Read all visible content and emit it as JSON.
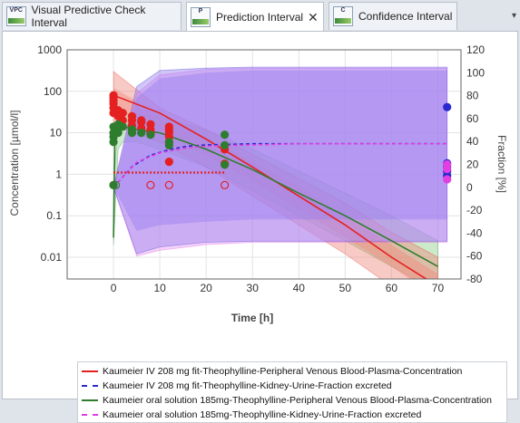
{
  "tabs": [
    {
      "icon_text": "VPC",
      "label": "Visual Predictive Check Interval"
    },
    {
      "icon_text": "P",
      "label": "Prediction Interval"
    },
    {
      "icon_text": "C",
      "label": "Confidence Interval"
    }
  ],
  "close_glyph": "✕",
  "dropdown_glyph": "▾",
  "chart_data": {
    "type": "line",
    "xlabel": "Time [h]",
    "ylabel": "Concentration [µmol/l]",
    "y2label": "Fraction [%]",
    "yscale": "log",
    "xlim": [
      -10,
      75
    ],
    "ylim": [
      0.003,
      1000
    ],
    "y2lim": [
      -80,
      120
    ],
    "x_ticks": [
      0,
      10,
      20,
      30,
      40,
      50,
      60,
      70
    ],
    "y_ticks": [
      0.01,
      0.1,
      1,
      10,
      100,
      1000
    ],
    "y_tick_labels": [
      "0.01",
      "0.1",
      "1",
      "10",
      "100",
      "1000"
    ],
    "y2_ticks": [
      -80,
      -60,
      -40,
      -20,
      0,
      20,
      40,
      60,
      80,
      100,
      120
    ],
    "grid": true,
    "legend_position": "bottom",
    "colors": {
      "red": "#e52020",
      "blue": "#2a2ad0",
      "green": "#2e7d2e",
      "magenta": "#e23fe2",
      "purple_band": "#a47cf0"
    },
    "series": [
      {
        "name": "Kaumeier IV 208 mg fit-Theophylline-Peripheral Venous Blood-Plasma-Concentration",
        "color": "#e52020",
        "style": "solid",
        "axis": "left",
        "x": [
          0,
          10,
          20,
          30,
          40,
          50,
          60,
          70
        ],
        "y": [
          80,
          30,
          7,
          1.5,
          0.3,
          0.06,
          0.01,
          0.002
        ],
        "band_outer": {
          "x": [
            0,
            10,
            20,
            30,
            40,
            50,
            60,
            70
          ],
          "upper": [
            300,
            40,
            12,
            3,
            0.8,
            0.2,
            0.04,
            0.01
          ],
          "lower": [
            15,
            6,
            1.5,
            0.3,
            0.06,
            0.012,
            0.002,
            0.0005
          ]
        },
        "band_inner": {
          "x": [
            0,
            10,
            20,
            30,
            40,
            50,
            60,
            70
          ],
          "upper": [
            120,
            28,
            8,
            2,
            0.5,
            0.1,
            0.02,
            0.004
          ],
          "lower": [
            40,
            12,
            3,
            0.7,
            0.14,
            0.03,
            0.006,
            0.001
          ]
        }
      },
      {
        "name": "Kaumeier IV 208 mg fit-Theophylline-Kidney-Urine-Fraction excreted",
        "color": "#2a2ad0",
        "style": "dashed",
        "axis": "right",
        "x": [
          0,
          4,
          8,
          12,
          16,
          20,
          30,
          40,
          50,
          60,
          72
        ],
        "y": [
          0,
          18,
          28,
          33,
          36,
          37,
          38,
          38,
          38,
          38,
          38
        ],
        "band_outer": {
          "x": [
            0,
            5,
            10,
            20,
            30,
            40,
            50,
            60,
            72
          ],
          "upper": [
            0,
            88,
            102,
            104,
            105,
            105,
            105,
            105,
            105
          ],
          "lower": [
            0,
            -58,
            -52,
            -48,
            -47,
            -47,
            -47,
            -47,
            -47
          ]
        },
        "band_inner": {
          "x": [
            0,
            5,
            10,
            20,
            30,
            40,
            50,
            60,
            72
          ],
          "upper": [
            0,
            78,
            95,
            100,
            102,
            102,
            102,
            102,
            102
          ],
          "lower": [
            0,
            -38,
            -33,
            -30,
            -28,
            -28,
            -28,
            -28,
            -28
          ]
        }
      },
      {
        "name": "Kaumeier oral solution 185mg-Theophylline-Peripheral Venous Blood-Plasma-Concentration",
        "color": "#2e7d2e",
        "style": "solid",
        "axis": "left",
        "x": [
          0,
          0.3,
          1,
          2,
          5,
          10,
          20,
          30,
          40,
          50,
          60,
          70
        ],
        "y": [
          0.03,
          8,
          14,
          14,
          12,
          10,
          4,
          1.3,
          0.35,
          0.1,
          0.025,
          0.006
        ],
        "band_outer": {
          "x": [
            0,
            1,
            2,
            5,
            10,
            20,
            30,
            40,
            50,
            60,
            70
          ],
          "upper": [
            0.5,
            20,
            30,
            28,
            24,
            12,
            4,
            1.2,
            0.35,
            0.1,
            0.025
          ],
          "lower": [
            0.02,
            4,
            6,
            6,
            4,
            1.5,
            0.4,
            0.1,
            0.025,
            0.006,
            0.0015
          ]
        }
      },
      {
        "name": "Kaumeier oral solution 185mg-Theophylline-Kidney-Urine-Fraction excreted",
        "color": "#e23fe2",
        "style": "dashed",
        "axis": "right",
        "x": [
          0,
          5,
          10,
          15,
          20,
          30,
          40,
          50,
          60,
          72
        ],
        "y": [
          0,
          22,
          30,
          34,
          36,
          37,
          38,
          38,
          38,
          38
        ],
        "band_outer": {
          "x": [
            0,
            5,
            10,
            20,
            30,
            40,
            50,
            60,
            72
          ],
          "upper": [
            0,
            82,
            98,
            103,
            104,
            104,
            104,
            104,
            104
          ],
          "lower": [
            0,
            -60,
            -55,
            -50,
            -48,
            -48,
            -48,
            -48,
            -48
          ]
        }
      }
    ],
    "observations": [
      {
        "series": "red",
        "axis": "left",
        "filled": true,
        "points": [
          [
            0,
            30
          ],
          [
            0,
            40
          ],
          [
            0,
            50
          ],
          [
            0,
            60
          ],
          [
            0,
            70
          ],
          [
            0,
            80
          ],
          [
            1,
            25
          ],
          [
            1,
            35
          ],
          [
            2,
            20
          ],
          [
            2,
            30
          ],
          [
            4,
            15
          ],
          [
            4,
            20
          ],
          [
            4,
            25
          ],
          [
            6,
            13
          ],
          [
            6,
            18
          ],
          [
            6,
            20
          ],
          [
            8,
            10
          ],
          [
            8,
            12
          ],
          [
            8,
            16
          ],
          [
            12,
            6
          ],
          [
            12,
            8
          ],
          [
            12,
            10
          ],
          [
            12,
            12
          ],
          [
            12,
            14
          ],
          [
            12,
            2
          ],
          [
            24,
            1.8
          ],
          [
            24,
            4
          ]
        ]
      },
      {
        "series": "red",
        "axis": "left",
        "filled": false,
        "points": [
          [
            0,
            0.55
          ],
          [
            8,
            0.55
          ],
          [
            12,
            0.55
          ],
          [
            24,
            0.55
          ]
        ]
      },
      {
        "series": "red",
        "axis": "left",
        "filled": false,
        "line": true,
        "points": [
          [
            0,
            1.1
          ],
          [
            24,
            1.1
          ]
        ]
      },
      {
        "series": "green",
        "axis": "left",
        "filled": true,
        "points": [
          [
            0,
            0.55
          ],
          [
            0,
            6
          ],
          [
            0,
            8
          ],
          [
            0,
            10
          ],
          [
            0,
            14
          ],
          [
            0.5,
            12
          ],
          [
            1,
            10
          ],
          [
            1,
            16
          ],
          [
            2,
            14
          ],
          [
            4,
            12
          ],
          [
            4,
            10
          ],
          [
            6,
            10
          ],
          [
            8,
            9
          ],
          [
            12,
            6
          ],
          [
            12,
            5
          ],
          [
            24,
            9
          ],
          [
            24,
            1.7
          ],
          [
            24,
            5
          ]
        ]
      },
      {
        "series": "green",
        "axis": "left",
        "filled": false,
        "points": [
          [
            0.5,
            0.55
          ]
        ]
      },
      {
        "series": "blue",
        "axis": "right",
        "filled": true,
        "points": [
          [
            72,
            70
          ],
          [
            72,
            21
          ],
          [
            72,
            18
          ],
          [
            72,
            14
          ],
          [
            72,
            10
          ]
        ]
      },
      {
        "series": "magenta",
        "axis": "right",
        "filled": true,
        "points": [
          [
            72,
            7
          ],
          [
            72,
            20
          ],
          [
            72,
            16
          ]
        ]
      }
    ]
  }
}
